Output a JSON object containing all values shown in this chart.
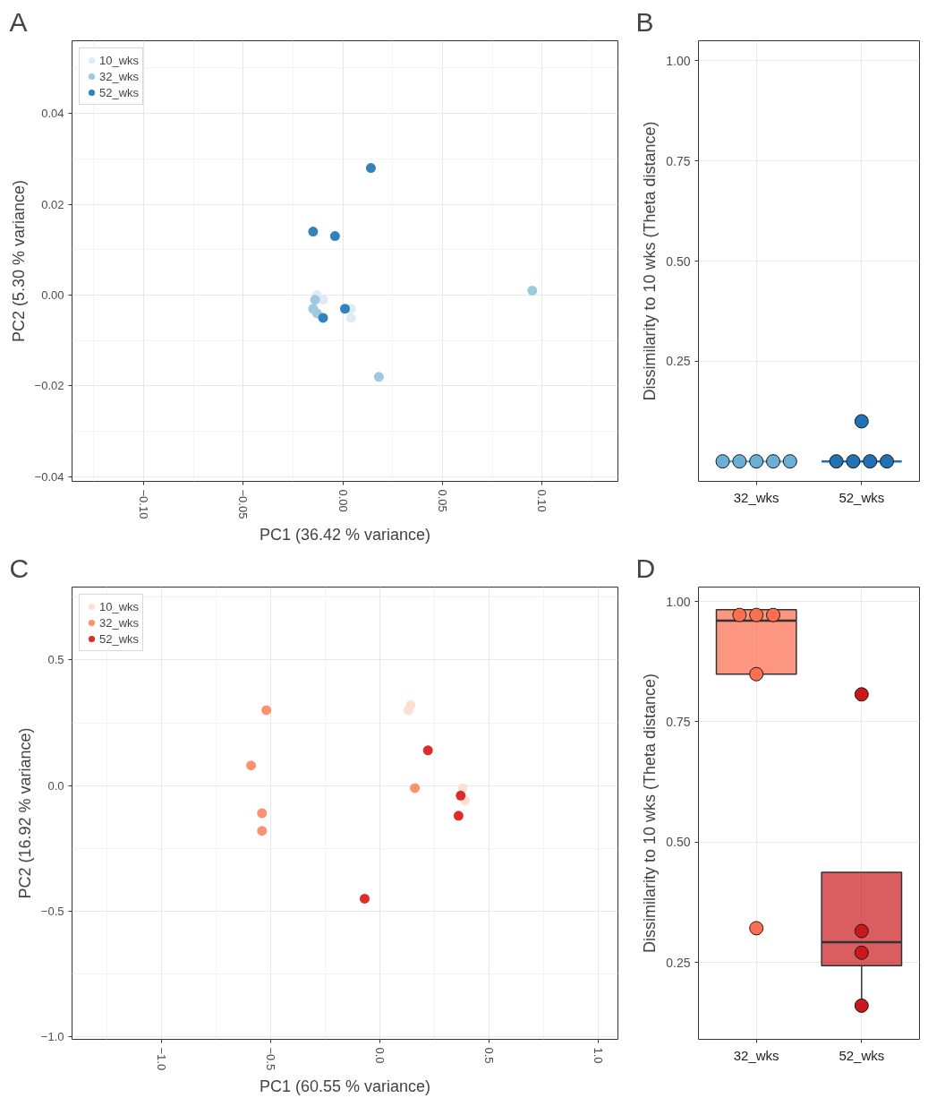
{
  "chart_data": [
    {
      "type": "scatter",
      "title": "A",
      "xlabel": "PC1 (36.42 % variance)",
      "ylabel": "PC2 (5.30 % variance)",
      "xlim": [
        -0.136,
        0.138
      ],
      "ylim": [
        -0.041,
        0.056
      ],
      "xticks": [
        {
          "value": -0.1,
          "label": "−0.10"
        },
        {
          "value": -0.05,
          "label": "−0.05"
        },
        {
          "value": 0,
          "label": "0.00"
        },
        {
          "value": 0.05,
          "label": "0.05"
        },
        {
          "value": 0.1,
          "label": "0.10"
        }
      ],
      "yticks": [
        {
          "value": -0.04,
          "label": "−0.04"
        },
        {
          "value": -0.02,
          "label": "−0.02"
        },
        {
          "value": 0,
          "label": "0.00"
        },
        {
          "value": 0.02,
          "label": "0.02"
        },
        {
          "value": 0.04,
          "label": "0.04"
        }
      ],
      "grid": true,
      "legend": "top left",
      "marker": "circle",
      "series": [
        {
          "name": "10_wks",
          "color": "#deebf7",
          "x": [
            -0.013,
            -0.01,
            0.004,
            0.004
          ],
          "values": [
            0.0,
            -0.001,
            -0.003,
            -0.005
          ]
        },
        {
          "name": "32_wks",
          "color": "#9ecae1",
          "x": [
            0.095,
            0.018,
            -0.014,
            -0.015,
            -0.013
          ],
          "values": [
            0.001,
            -0.018,
            -0.001,
            -0.003,
            -0.004
          ]
        },
        {
          "name": "52_wks",
          "color": "#3182bd",
          "x": [
            0.014,
            -0.015,
            -0.004,
            0.001,
            -0.01
          ],
          "values": [
            0.028,
            0.014,
            0.013,
            -0.003,
            -0.005
          ]
        }
      ]
    },
    {
      "type": "box",
      "title": "B",
      "ylabel": "Dissimilarity to 10 wks (Theta distance)",
      "categories": [
        "32_wks",
        "52_wks"
      ],
      "ylim": [
        -0.05,
        1.05
      ],
      "yticks": [
        {
          "value": 0.25,
          "label": "0.25"
        },
        {
          "value": 0.5,
          "label": "0.50"
        },
        {
          "value": 0.75,
          "label": "0.75"
        },
        {
          "value": 1,
          "label": "1.00"
        }
      ],
      "grid": true,
      "marker": "circle",
      "colors": [
        "#6baed6",
        "#2171b5"
      ],
      "boxes": [
        {
          "low": 0,
          "q1": 0,
          "median": 0,
          "q3": 0,
          "high": 0
        },
        {
          "low": 0,
          "q1": 0,
          "median": 0,
          "q3": 0,
          "high": 0
        }
      ],
      "series": [
        {
          "type": "scatter",
          "color": "#6baed6",
          "x": [
            "32_wks",
            "32_wks",
            "32_wks",
            "32_wks",
            "32_wks"
          ],
          "values": [
            0,
            0,
            0,
            0,
            0
          ]
        },
        {
          "type": "scatter",
          "color": "#2171b5",
          "x": [
            "52_wks",
            "52_wks",
            "52_wks",
            "52_wks",
            "52_wks"
          ],
          "values": [
            0.1,
            0,
            0,
            0,
            0
          ]
        }
      ]
    },
    {
      "type": "scatter",
      "title": "C",
      "xlabel": "PC1 (60.55 % variance)",
      "ylabel": "PC2 (16.92 % variance)",
      "xlim": [
        -1.41,
        1.09
      ],
      "ylim": [
        -1.01,
        0.79
      ],
      "xticks": [
        {
          "value": -1,
          "label": "−1.0"
        },
        {
          "value": -0.5,
          "label": "−0.5"
        },
        {
          "value": 0,
          "label": "0.0"
        },
        {
          "value": 0.5,
          "label": "0.5"
        },
        {
          "value": 1,
          "label": "1.0"
        }
      ],
      "yticks": [
        {
          "value": -1,
          "label": "−1.0"
        },
        {
          "value": -0.5,
          "label": "−0.5"
        },
        {
          "value": 0,
          "label": "0.0"
        },
        {
          "value": 0.5,
          "label": "0.5"
        }
      ],
      "grid": true,
      "legend": "top left",
      "marker": "circle",
      "series": [
        {
          "name": "10_wks",
          "color": "#fee0d2",
          "x": [
            0.14,
            0.13,
            0.38,
            0.39
          ],
          "values": [
            0.32,
            0.3,
            -0.01,
            -0.06
          ]
        },
        {
          "name": "32_wks",
          "color": "#fc9272",
          "x": [
            -0.52,
            -0.59,
            -0.54,
            -0.54,
            0.16
          ],
          "values": [
            0.3,
            0.08,
            -0.11,
            -0.18,
            -0.01
          ]
        },
        {
          "name": "52_wks",
          "color": "#de2d26",
          "x": [
            0.22,
            0.37,
            0.36,
            -0.07
          ],
          "values": [
            0.14,
            -0.04,
            -0.12,
            -0.45
          ]
        }
      ]
    },
    {
      "type": "box",
      "title": "D",
      "ylabel": "Dissimilarity to 10 wks (Theta distance)",
      "categories": [
        "32_wks",
        "52_wks"
      ],
      "ylim": [
        0.09,
        1.03
      ],
      "yticks": [
        {
          "value": 0.25,
          "label": "0.25"
        },
        {
          "value": 0.5,
          "label": "0.50"
        },
        {
          "value": 0.75,
          "label": "0.75"
        },
        {
          "value": 1,
          "label": "1.00"
        }
      ],
      "grid": true,
      "marker": "circle",
      "colors": [
        "#fb6a4a",
        "#cb181d"
      ],
      "boxes": [
        {
          "low": 0.849,
          "q1": 0.849,
          "median": 0.96,
          "q3": 0.983,
          "high": 0.983
        },
        {
          "low": 0.16,
          "q1": 0.243,
          "median": 0.292,
          "q3": 0.437,
          "high": 0.437
        }
      ],
      "series": [
        {
          "type": "scatter",
          "color": "#fc6f4f",
          "x": [
            "32_wks",
            "32_wks",
            "32_wks",
            "32_wks",
            "32_wks"
          ],
          "values": [
            0.972,
            0.972,
            0.972,
            0.849,
            0.321
          ]
        },
        {
          "type": "scatter",
          "color": "#cb181d",
          "x": [
            "52_wks",
            "52_wks",
            "52_wks",
            "52_wks"
          ],
          "values": [
            0.807,
            0.315,
            0.27,
            0.16
          ]
        }
      ]
    }
  ]
}
